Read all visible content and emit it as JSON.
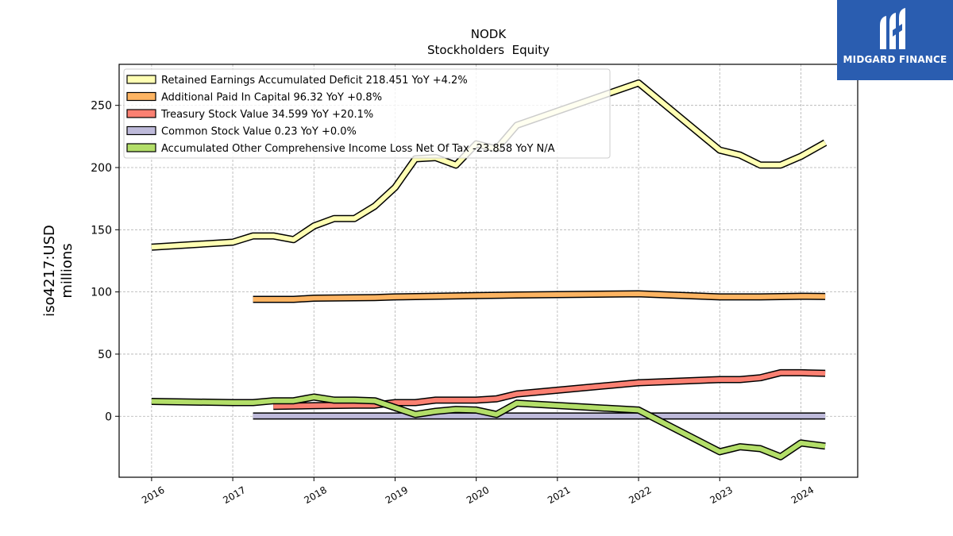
{
  "logo": {
    "text": "MIDGARD FINANCE",
    "color": "#2a5db0"
  },
  "chart_data": {
    "type": "line",
    "title": "NODK",
    "subtitle": "Stockholders  Equity",
    "ylabel": "iso4217:USD",
    "ylabel2": "millions",
    "xlabel": "",
    "xlim": [
      2015.6,
      2024.7
    ],
    "ylim": [
      -49,
      283
    ],
    "yticks": [
      0,
      50,
      100,
      150,
      200,
      250
    ],
    "xticks": [
      2016,
      2017,
      2018,
      2019,
      2020,
      2021,
      2022,
      2023,
      2024
    ],
    "grid": true,
    "legend_position": "top-left",
    "series": [
      {
        "name": "Retained Earnings Accumulated Deficit  218.451 YoY +4.2%",
        "color": "#ffffb3",
        "points": [
          [
            2016.0,
            136
          ],
          [
            2017.0,
            140
          ],
          [
            2017.25,
            145
          ],
          [
            2017.5,
            145
          ],
          [
            2017.75,
            142
          ],
          [
            2018.0,
            153
          ],
          [
            2018.25,
            159
          ],
          [
            2018.5,
            159
          ],
          [
            2018.75,
            169
          ],
          [
            2019.0,
            184
          ],
          [
            2019.25,
            207
          ],
          [
            2019.5,
            208
          ],
          [
            2019.75,
            202
          ],
          [
            2020.0,
            219
          ],
          [
            2020.25,
            215
          ],
          [
            2020.5,
            234
          ],
          [
            2022.0,
            268
          ],
          [
            2023.0,
            214
          ],
          [
            2023.25,
            210
          ],
          [
            2023.5,
            202
          ],
          [
            2023.75,
            202
          ],
          [
            2024.0,
            209
          ],
          [
            2024.3,
            220
          ]
        ]
      },
      {
        "name": "Additional Paid In Capital  96.32 YoY +0.8%",
        "color": "#fdb462",
        "points": [
          [
            2017.25,
            94
          ],
          [
            2017.75,
            94
          ],
          [
            2018.0,
            95
          ],
          [
            2018.75,
            95.5
          ],
          [
            2019.0,
            96
          ],
          [
            2020.0,
            97
          ],
          [
            2020.5,
            97.5
          ],
          [
            2022.0,
            98.5
          ],
          [
            2023.0,
            96
          ],
          [
            2023.5,
            96
          ],
          [
            2024.0,
            96.5
          ],
          [
            2024.3,
            96.3
          ]
        ]
      },
      {
        "name": "Treasury Stock Value  34.599 YoY +20.1%",
        "color": "#fb8072",
        "points": [
          [
            2017.5,
            8
          ],
          [
            2018.0,
            8.5
          ],
          [
            2018.5,
            9
          ],
          [
            2018.75,
            9
          ],
          [
            2019.0,
            11
          ],
          [
            2019.25,
            11
          ],
          [
            2019.5,
            13
          ],
          [
            2020.0,
            13
          ],
          [
            2020.25,
            14
          ],
          [
            2020.5,
            18
          ],
          [
            2022.0,
            27
          ],
          [
            2023.0,
            29.5
          ],
          [
            2023.25,
            29.5
          ],
          [
            2023.5,
            31
          ],
          [
            2023.75,
            35
          ],
          [
            2024.0,
            35
          ],
          [
            2024.3,
            34.6
          ]
        ]
      },
      {
        "name": "Common Stock Value  0.23 YoY +0.0%",
        "color": "#bebada",
        "points": [
          [
            2017.25,
            0.23
          ],
          [
            2024.3,
            0.23
          ]
        ]
      },
      {
        "name": "Accumulated Other Comprehensive Income Loss Net Of Tax  -23.858 YoY N/A",
        "color": "#b3de69",
        "points": [
          [
            2016.0,
            12
          ],
          [
            2017.0,
            11
          ],
          [
            2017.25,
            11
          ],
          [
            2017.5,
            12.5
          ],
          [
            2017.75,
            12.5
          ],
          [
            2018.0,
            15.5
          ],
          [
            2018.25,
            13
          ],
          [
            2018.5,
            13
          ],
          [
            2018.75,
            12.5
          ],
          [
            2019.0,
            7
          ],
          [
            2019.25,
            1.5
          ],
          [
            2019.5,
            4
          ],
          [
            2019.75,
            5.5
          ],
          [
            2020.0,
            5
          ],
          [
            2020.25,
            1.5
          ],
          [
            2020.5,
            10.5
          ],
          [
            2022.0,
            5
          ],
          [
            2023.0,
            -28.5
          ],
          [
            2023.25,
            -24.5
          ],
          [
            2023.5,
            -26
          ],
          [
            2023.75,
            -32.5
          ],
          [
            2024.0,
            -21.5
          ],
          [
            2024.3,
            -24
          ]
        ]
      }
    ]
  }
}
